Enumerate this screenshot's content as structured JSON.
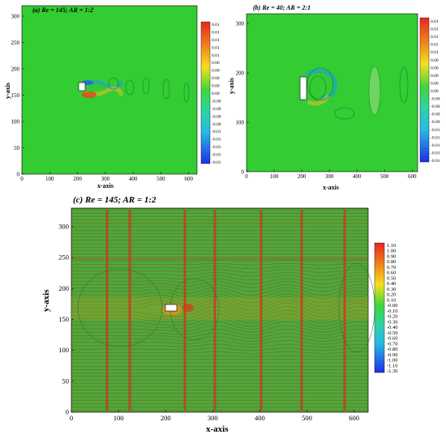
{
  "chart_data": [
    {
      "type": "heatmap",
      "panel": "a",
      "title": "(a) Re = 145; AR = 1:2",
      "xlabel": "x-axis",
      "ylabel": "y-axis",
      "xlim": [
        0,
        630
      ],
      "ylim": [
        0,
        320
      ],
      "xticks": [
        "0",
        "100",
        "200",
        "300",
        "400",
        "500",
        "600"
      ],
      "yticks": [
        "0",
        "50",
        "100",
        "150",
        "200",
        "250",
        "300"
      ],
      "colorbar_labels": [
        "0.01",
        "0.01",
        "0.01",
        "0.01",
        "0.01",
        "0.00",
        "0.00",
        "0.00",
        "0.00",
        "0.00",
        "-0.00",
        "-0.00",
        "-0.00",
        "-0.00",
        "-0.01",
        "-0.01",
        "-0.01",
        "-0.01",
        "-0.01"
      ],
      "obstacle": {
        "x": [
          200,
          225
        ],
        "y": [
          155,
          175
        ]
      }
    },
    {
      "type": "heatmap",
      "panel": "b",
      "title": "(b) Re = 40; AR = 2:1",
      "xlabel": "x-axis",
      "ylabel": "y-axis",
      "xlim": [
        0,
        620
      ],
      "ylim": [
        0,
        320
      ],
      "xticks": [
        "0",
        "100",
        "200",
        "300",
        "400",
        "500",
        "600"
      ],
      "yticks": [
        "0",
        "100",
        "200",
        "300"
      ],
      "colorbar_labels": [
        "0.01",
        "0.01",
        "0.01",
        "0.01",
        "0.01",
        "0.00",
        "0.00",
        "0.00",
        "0.00",
        "0.00",
        "-0.00",
        "-0.00",
        "-0.00",
        "-0.00",
        "-0.01",
        "-0.01",
        "-0.01",
        "-0.01",
        "-0.01"
      ],
      "obstacle": {
        "x": [
          200,
          220
        ],
        "y": [
          145,
          200
        ]
      }
    },
    {
      "type": "heatmap",
      "panel": "c",
      "title": "(c) Re = 145; AR = 1:2",
      "xlabel": "x-axis",
      "ylabel": "y-axis",
      "xlim": [
        0,
        630
      ],
      "ylim": [
        0,
        330
      ],
      "xticks": [
        "0",
        "100",
        "200",
        "300",
        "400",
        "500",
        "600"
      ],
      "yticks": [
        "0",
        "50",
        "100",
        "150",
        "200",
        "250",
        "300"
      ],
      "colorbar_labels": [
        "1.10",
        "1.00",
        "0.90",
        "0.80",
        "0.70",
        "0.60",
        "0.50",
        "0.40",
        "0.30",
        "0.20",
        "0.10",
        "-0.00",
        "-0.10",
        "-0.20",
        "-0.30",
        "-0.40",
        "-0.50",
        "-0.60",
        "-0.70",
        "-0.80",
        "-0.90",
        "-1.00",
        "-1.10",
        "-1.30"
      ],
      "obstacle": {
        "x": [
          200,
          225
        ],
        "y": [
          160,
          172
        ]
      }
    }
  ]
}
